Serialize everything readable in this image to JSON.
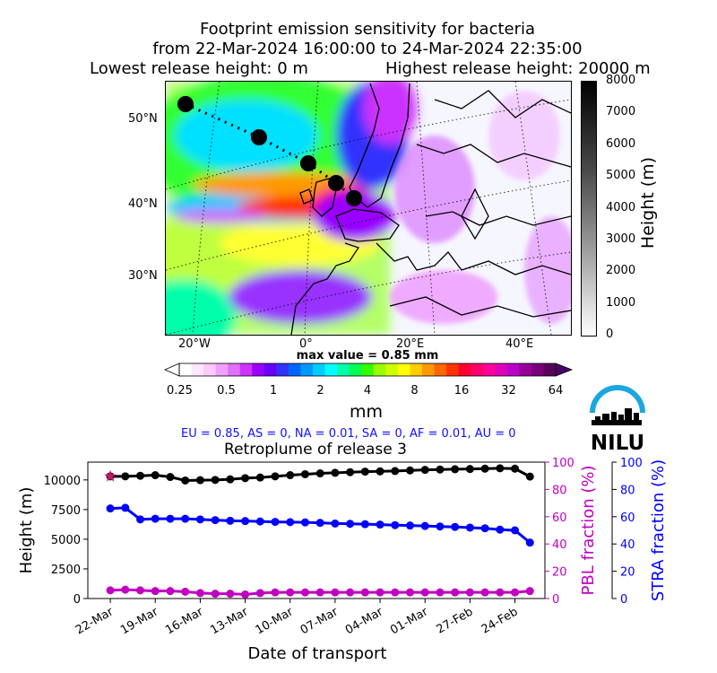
{
  "header": {
    "line1": "Footprint emission sensitivity for bacteria",
    "line2": "from 22-Mar-2024 16:00:00 to 24-Mar-2024 22:35:00",
    "line3_left": "Lowest release height: 0 m",
    "line3_right": "Highest release height: 20000 m"
  },
  "map": {
    "lat_labels": [
      "50°N",
      "40°N",
      "30°N"
    ],
    "lon_labels": [
      "20°W",
      "0°",
      "20°E",
      "40°E"
    ],
    "max_value_text": "max value = 0.85 mm",
    "height_colorbar": {
      "label": "Height (m)",
      "ticks": [
        "8000",
        "7000",
        "6000",
        "5000",
        "4000",
        "3000",
        "2000",
        "1000",
        "0"
      ]
    },
    "sensitivity_colorbar": {
      "label": "mm",
      "ticks": [
        "0.25",
        "0.5",
        "1",
        "2",
        "4",
        "8",
        "16",
        "32",
        "64"
      ]
    },
    "trajectory_points": 5
  },
  "logo": {
    "text": "NILU",
    "color": "#1aa7e0"
  },
  "region_fractions": "EU = 0.85,  AS = 0,  NA = 0.01,  SA = 0,  AF = 0.01,  AU = 0",
  "colors": {
    "height_series": "#000000",
    "stra_series": "#0000ff",
    "pbl_series": "#c000c0",
    "release_marker": "#c0176a"
  },
  "chart_data": {
    "type": "line",
    "title": "Retroplume of release 3",
    "xlabel": "Date of transport",
    "ylabel": "Height (m)",
    "ylabel_right1": "PBL fraction (%)",
    "ylabel_right2": "STRA fraction (%)",
    "x_ticks": [
      "22-Mar",
      "19-Mar",
      "16-Mar",
      "13-Mar",
      "10-Mar",
      "07-Mar",
      "04-Mar",
      "01-Mar",
      "27-Feb",
      "24-Feb"
    ],
    "y_ticks": [
      "0",
      "2500",
      "5000",
      "7500",
      "10000"
    ],
    "y2_ticks": [
      "0",
      "20",
      "40",
      "60",
      "80",
      "100"
    ],
    "x_days_back_range": [
      -1.5,
      29
    ],
    "ylim": [
      0,
      11500
    ],
    "y2lim": [
      0,
      100
    ],
    "x_days_back": [
      0,
      1,
      2,
      3,
      4,
      5,
      6,
      7,
      8,
      9,
      10,
      11,
      12,
      13,
      14,
      15,
      16,
      17,
      18,
      19,
      20,
      21,
      22,
      23,
      24,
      25,
      26,
      27,
      28
    ],
    "series": [
      {
        "name": "Height (m)",
        "axis": "left",
        "values": [
          10300,
          10300,
          10350,
          10400,
          10250,
          9950,
          9980,
          10000,
          10050,
          10150,
          10200,
          10300,
          10400,
          10480,
          10550,
          10600,
          10650,
          10700,
          10720,
          10750,
          10800,
          10850,
          10880,
          10900,
          10920,
          10950,
          10980,
          10950,
          10280
        ]
      },
      {
        "name": "STRA fraction (%)",
        "axis": "right2",
        "values": [
          66,
          66.5,
          58,
          58.5,
          58.5,
          58.5,
          58,
          57.5,
          57,
          56.8,
          56.5,
          56.2,
          56,
          55.8,
          55.5,
          55,
          54.8,
          54.5,
          54.2,
          53.8,
          53.5,
          53.2,
          52.8,
          52.5,
          52,
          51.5,
          50.5,
          50,
          41
        ]
      },
      {
        "name": "PBL fraction (%)",
        "axis": "right1",
        "values": [
          6,
          6.5,
          6,
          5.5,
          5.5,
          5,
          4,
          3.5,
          3.5,
          3,
          4,
          4.5,
          4.5,
          4.5,
          4.5,
          4.5,
          4.5,
          4.5,
          4.5,
          4.5,
          4.5,
          4.5,
          4.5,
          4.5,
          4.5,
          4.5,
          4.5,
          4.5,
          5.5
        ]
      }
    ]
  }
}
